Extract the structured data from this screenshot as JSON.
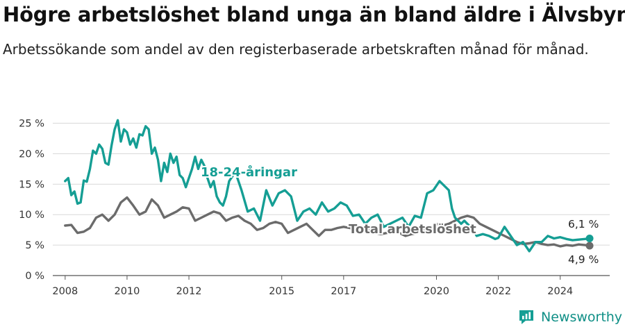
{
  "title": "Högre arbetslöshet bland unga än bland äldre i Älvsbyn",
  "subtitle": "Arbetssökande som andel av den registerbaserade arbetskraften månad för månad.",
  "brand": "Newsworthy",
  "colors": {
    "youth": "#159e94",
    "total": "#6b6b6b",
    "grid": "#d9d9d9"
  },
  "chart_data": {
    "type": "line",
    "y_tick_labels": [
      "0 %",
      "5 %",
      "10 %",
      "15 %",
      "20 %",
      "25 %"
    ],
    "x_tick_labels": [
      "2008",
      "2010",
      "2012",
      "2015",
      "2017",
      "2020",
      "2022",
      "2024"
    ],
    "ylim": [
      0,
      27
    ],
    "xlim": [
      2007.6,
      2025.6
    ],
    "grid": true,
    "series": [
      {
        "name": "18-24-åringar",
        "end_label": "6,1 %",
        "x": [
          2008.0,
          2008.1,
          2008.2,
          2008.3,
          2008.4,
          2008.5,
          2008.6,
          2008.7,
          2008.8,
          2008.9,
          2009.0,
          2009.1,
          2009.2,
          2009.3,
          2009.4,
          2009.5,
          2009.6,
          2009.7,
          2009.8,
          2009.9,
          2010.0,
          2010.1,
          2010.2,
          2010.3,
          2010.4,
          2010.5,
          2010.6,
          2010.7,
          2010.8,
          2010.9,
          2011.0,
          2011.1,
          2011.2,
          2011.3,
          2011.4,
          2011.5,
          2011.6,
          2011.7,
          2011.8,
          2011.9,
          2012.0,
          2012.1,
          2012.2,
          2012.3,
          2012.4,
          2012.5,
          2012.6,
          2012.7,
          2012.8,
          2012.9,
          2013.0,
          2013.1,
          2013.2,
          2013.3,
          2013.5,
          2013.7,
          2013.9,
          2014.1,
          2014.3,
          2014.5,
          2014.7,
          2014.9,
          2015.1,
          2015.3,
          2015.5,
          2015.7,
          2015.9,
          2016.1,
          2016.3,
          2016.5,
          2016.7,
          2016.9,
          2017.1,
          2017.3,
          2017.5,
          2017.7,
          2017.9,
          2018.1,
          2018.3,
          2018.5,
          2018.7,
          2018.9,
          2019.1,
          2019.3,
          2019.5,
          2019.7,
          2019.9,
          2020.1,
          2020.2,
          2020.4,
          2020.5,
          2020.6,
          2020.8,
          2020.9,
          2021.0,
          2021.1,
          2021.2,
          2021.3,
          2021.5,
          2021.7,
          2021.9,
          2022.0,
          2022.2,
          2022.4,
          2022.6,
          2022.8,
          2023.0,
          2023.2,
          2023.4,
          2023.6,
          2023.8,
          2024.0,
          2024.2,
          2024.4,
          2024.6,
          2024.8,
          2024.95
        ],
        "values": [
          15.5,
          16.0,
          13.2,
          13.8,
          11.8,
          12.0,
          15.6,
          15.4,
          17.5,
          20.5,
          20.0,
          21.5,
          20.8,
          18.5,
          18.2,
          21.4,
          24.0,
          25.5,
          22.0,
          24.0,
          23.5,
          21.5,
          22.5,
          21.0,
          23.2,
          23.0,
          24.5,
          24.0,
          20.0,
          21.0,
          19.0,
          15.5,
          18.5,
          17.0,
          20.0,
          18.5,
          19.5,
          16.5,
          16.0,
          14.5,
          16.0,
          17.5,
          19.5,
          17.5,
          19.0,
          18.0,
          16.0,
          14.5,
          15.5,
          13.0,
          12.0,
          11.5,
          13.0,
          15.5,
          17.0,
          14.0,
          10.5,
          11.0,
          9.0,
          14.0,
          11.5,
          13.5,
          14.0,
          13.0,
          9.0,
          10.5,
          11.0,
          10.0,
          12.0,
          10.5,
          11.0,
          12.0,
          11.5,
          9.8,
          10.0,
          8.5,
          9.5,
          10.0,
          8.0,
          8.5,
          9.0,
          9.5,
          8.0,
          9.8,
          9.5,
          13.5,
          14.0,
          15.5,
          15.0,
          14.0,
          11.0,
          9.5,
          8.5,
          9.0,
          8.5,
          8.0,
          7.5,
          6.5,
          6.8,
          6.5,
          6.0,
          6.2,
          8.0,
          6.5,
          5.0,
          5.5,
          4.0,
          5.5,
          5.5,
          6.5,
          6.1,
          6.3,
          6.0,
          5.8,
          5.9,
          6.0,
          6.1
        ]
      },
      {
        "name": "Total arbetslöshet",
        "end_label": "4,9 %",
        "x": [
          2008.0,
          2008.2,
          2008.4,
          2008.6,
          2008.8,
          2009.0,
          2009.2,
          2009.4,
          2009.6,
          2009.8,
          2010.0,
          2010.2,
          2010.4,
          2010.6,
          2010.8,
          2011.0,
          2011.2,
          2011.4,
          2011.6,
          2011.8,
          2012.0,
          2012.2,
          2012.4,
          2012.6,
          2012.8,
          2013.0,
          2013.2,
          2013.4,
          2013.6,
          2013.8,
          2014.0,
          2014.2,
          2014.4,
          2014.6,
          2014.8,
          2015.0,
          2015.2,
          2015.4,
          2015.6,
          2015.8,
          2016.0,
          2016.2,
          2016.4,
          2016.6,
          2016.8,
          2017.0,
          2017.2,
          2017.4,
          2017.6,
          2017.8,
          2018.0,
          2018.2,
          2018.4,
          2018.6,
          2018.8,
          2019.0,
          2019.2,
          2019.4,
          2019.6,
          2019.8,
          2020.0,
          2020.2,
          2020.4,
          2020.6,
          2020.8,
          2021.0,
          2021.2,
          2021.4,
          2021.6,
          2021.8,
          2022.0,
          2022.2,
          2022.4,
          2022.6,
          2022.8,
          2023.0,
          2023.2,
          2023.4,
          2023.6,
          2023.8,
          2024.0,
          2024.2,
          2024.4,
          2024.6,
          2024.8,
          2024.95
        ],
        "values": [
          8.2,
          8.3,
          7.0,
          7.2,
          7.8,
          9.5,
          10.0,
          9.0,
          10.0,
          12.0,
          12.8,
          11.5,
          10.0,
          10.5,
          12.5,
          11.5,
          9.5,
          10.0,
          10.5,
          11.2,
          11.0,
          9.0,
          9.5,
          10.0,
          10.5,
          10.2,
          9.0,
          9.5,
          9.8,
          9.0,
          8.5,
          7.5,
          7.8,
          8.5,
          8.8,
          8.5,
          7.0,
          7.5,
          8.0,
          8.5,
          7.5,
          6.5,
          7.5,
          7.5,
          7.8,
          8.0,
          7.8,
          7.5,
          7.2,
          7.5,
          7.0,
          6.8,
          7.0,
          7.2,
          7.0,
          6.5,
          6.8,
          7.0,
          7.5,
          7.8,
          8.5,
          8.2,
          8.5,
          9.0,
          9.5,
          9.8,
          9.5,
          8.5,
          8.0,
          7.5,
          7.0,
          6.5,
          6.0,
          5.5,
          5.2,
          5.3,
          5.5,
          5.2,
          5.0,
          5.1,
          4.8,
          5.0,
          4.9,
          5.1,
          5.0,
          4.9
        ]
      }
    ]
  }
}
